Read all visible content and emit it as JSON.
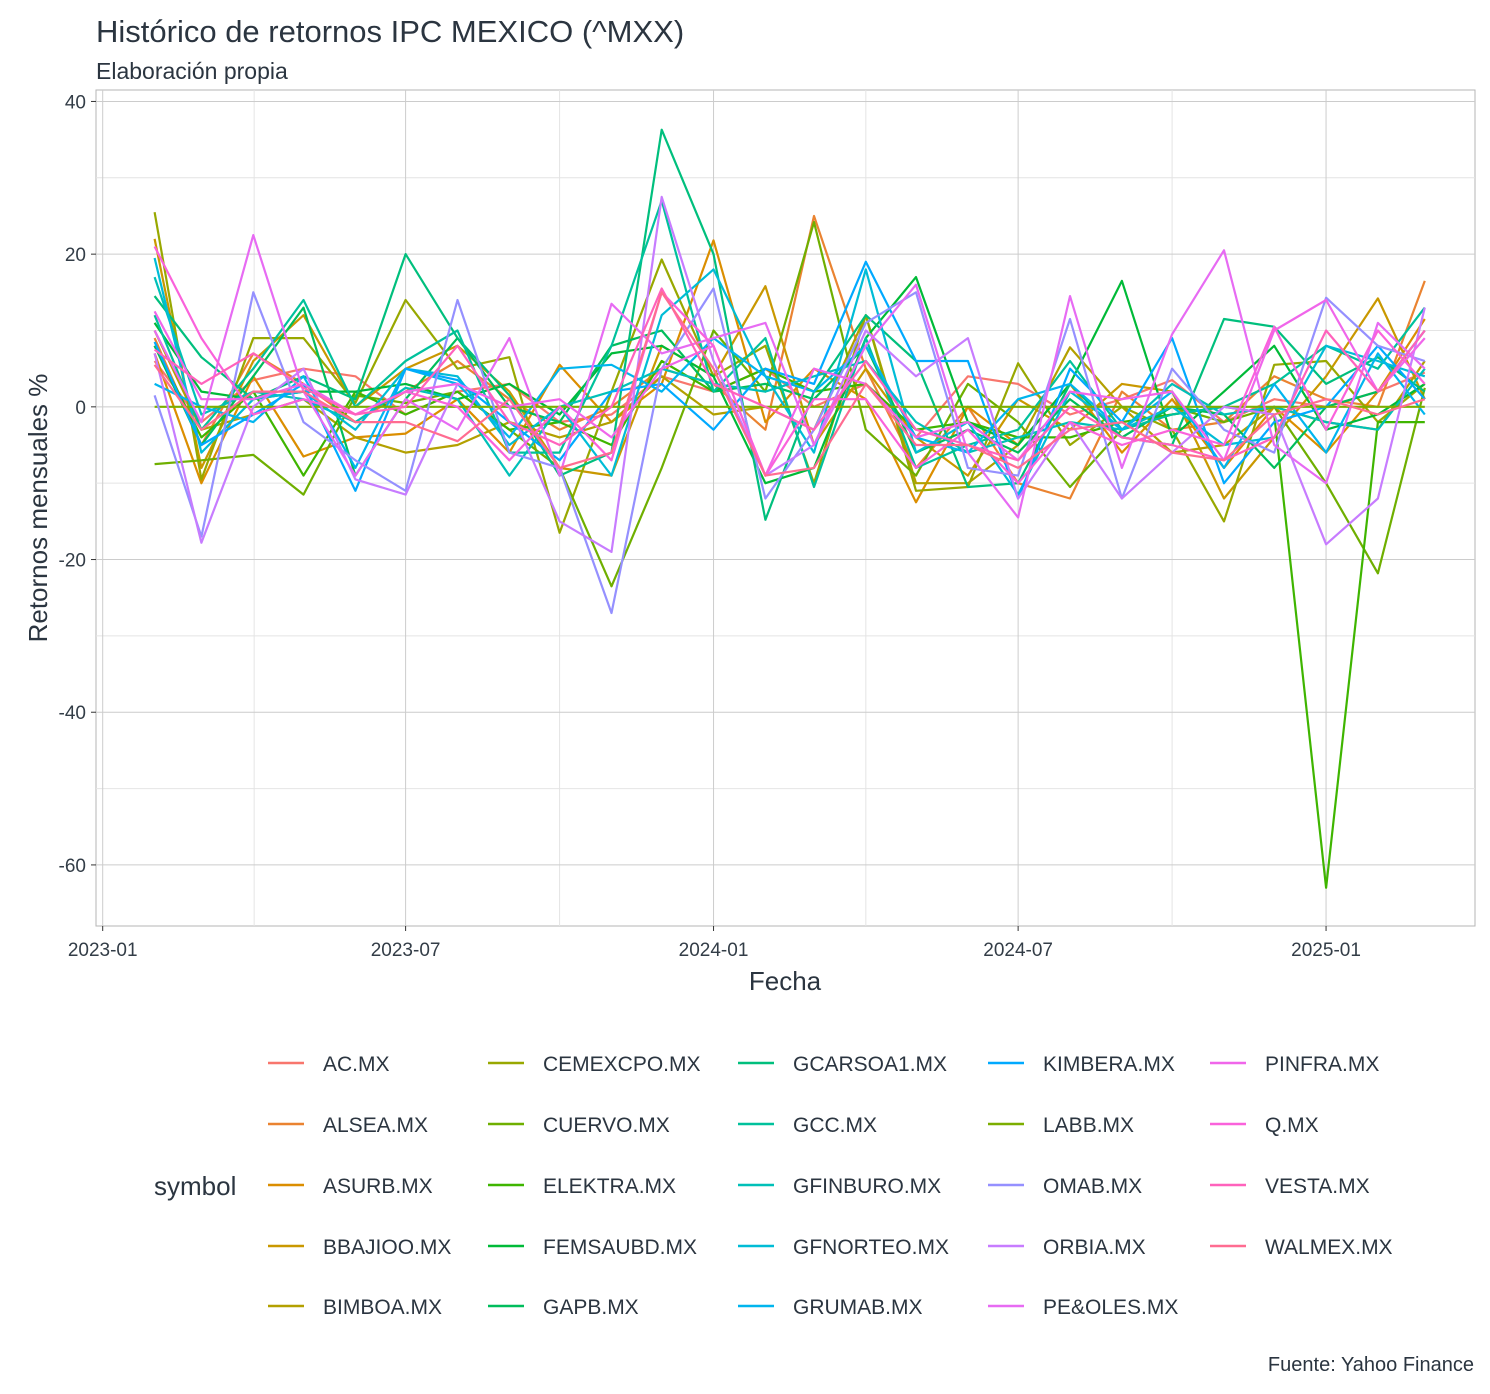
{
  "chart_data": {
    "type": "line",
    "title": "Histórico de retornos IPC MEXICO (^MXX)",
    "subtitle": "Elaboración propia",
    "caption": "Fuente: Yahoo Finance",
    "xlabel": "Fecha",
    "ylabel": "Retornos mensuales %",
    "legend_title": "symbol",
    "legend_position": "bottom",
    "grid": true,
    "x_ticks": [
      "2023-01",
      "2023-07",
      "2024-01",
      "2024-07",
      "2025-01"
    ],
    "y_ticks": [
      40,
      20,
      0,
      -20,
      -40,
      -60
    ],
    "ylim": [
      -68,
      41.5
    ],
    "xlim": [
      "2022-12-28",
      "2025-03-31"
    ],
    "x": [
      "2023-02-01",
      "2023-03-01",
      "2023-04-01",
      "2023-05-01",
      "2023-06-01",
      "2023-07-01",
      "2023-08-01",
      "2023-09-01",
      "2023-10-01",
      "2023-11-01",
      "2023-12-01",
      "2024-01-01",
      "2024-02-01",
      "2024-03-01",
      "2024-04-01",
      "2024-05-01",
      "2024-06-01",
      "2024-07-01",
      "2024-08-01",
      "2024-09-01",
      "2024-10-01",
      "2024-11-01",
      "2024-12-01",
      "2025-01-01",
      "2025-02-01",
      "2025-03-01"
    ],
    "series": [
      {
        "name": "AC.MX",
        "color": "#F8766D",
        "values": [
          6.0,
          -2.0,
          3.5,
          5.0,
          4.0,
          -1.0,
          2.0,
          3.0,
          -2.0,
          -1.0,
          4.0,
          2.0,
          5.0,
          0.0,
          3.0,
          -4.0,
          4.0,
          3.0,
          -1.0,
          1.0,
          3.5,
          -2.0,
          1.0,
          0.0,
          2.0,
          4.5
        ]
      },
      {
        "name": "ALSEA.MX",
        "color": "#EA8331",
        "values": [
          9.0,
          -5.0,
          7.0,
          3.0,
          -2.0,
          2.0,
          6.0,
          1.0,
          -3.0,
          0.0,
          5.0,
          3.0,
          -3.0,
          25.0,
          5.0,
          -8.0,
          0.0,
          -10.0,
          -12.0,
          2.0,
          -3.0,
          -2.0,
          4.0,
          1.0,
          0.0,
          16.5
        ]
      },
      {
        "name": "ASURB.MX",
        "color": "#DB8E00",
        "values": [
          7.0,
          -10.0,
          4.0,
          -6.5,
          -4.0,
          -3.5,
          1.0,
          -6.0,
          5.5,
          -2.0,
          3.0,
          21.8,
          -2.0,
          5.0,
          1.0,
          -12.5,
          0.0,
          -5.0,
          3.0,
          -6.0,
          1.0,
          -8.0,
          0.0,
          -6.0,
          2.0,
          11.5
        ]
      },
      {
        "name": "BBAJIOO.MX",
        "color": "#C99800",
        "values": [
          22.0,
          -8.0,
          6.0,
          12.0,
          0.0,
          5.0,
          8.0,
          2.0,
          -8.0,
          -9.0,
          8.0,
          4.0,
          15.8,
          -5.0,
          5.0,
          -4.0,
          -9.0,
          1.0,
          -3.0,
          3.0,
          2.0,
          -12.0,
          -4.0,
          4.0,
          14.2,
          1.0
        ]
      },
      {
        "name": "BIMBOA.MX",
        "color": "#B3A000",
        "values": [
          10.0,
          -3.0,
          -1.0,
          1.0,
          -4.0,
          -6.0,
          -5.0,
          -2.0,
          -4.0,
          -2.0,
          4.0,
          -1.0,
          0.0,
          -3.0,
          12.0,
          -10.0,
          -10.0,
          -5.0,
          7.8,
          0.0,
          -6.0,
          -5.0,
          0.0,
          -2.0,
          -3.0,
          6.0
        ]
      },
      {
        "name": "CEMEXCPO.MX",
        "color": "#98A800",
        "values": [
          25.5,
          -9.5,
          9.0,
          9.0,
          0.5,
          14.0,
          5.0,
          6.5,
          -16.5,
          2.0,
          19.3,
          4.0,
          8.0,
          -10.0,
          12.0,
          -11.0,
          -10.5,
          5.7,
          -5.0,
          0.0,
          -3.0,
          -15.0,
          5.5,
          6.0,
          -2.0,
          3.0
        ]
      },
      {
        "name": "CUERVO.MX",
        "color": "#6FAF00",
        "values": [
          -7.5,
          -7.0,
          -6.3,
          -11.5,
          1.5,
          0.5,
          2.0,
          -3.0,
          -8.0,
          -23.5,
          -8.0,
          10.0,
          2.0,
          24.2,
          -3.0,
          -9.0,
          3.0,
          -2.0,
          -10.5,
          -3.0,
          0.0,
          -2.0,
          0.0,
          -10.0,
          -21.8,
          2.5
        ]
      },
      {
        "name": "ELEKTRA.MX",
        "color": "#3FB500",
        "values": [
          8.0,
          -4.0,
          2.0,
          -9.0,
          2.0,
          -1.0,
          2.0,
          -3.0,
          -2.0,
          -5.0,
          6.0,
          2.0,
          5.0,
          2.0,
          3.0,
          -3.0,
          -2.0,
          -4.0,
          -4.0,
          -2.0,
          -1.0,
          0.0,
          -1.0,
          -63.0,
          -2.0,
          -2.0
        ]
      },
      {
        "name": "FEMSAUBD.MX",
        "color": "#00BA38",
        "values": [
          11.0,
          2.0,
          1.0,
          2.0,
          2.0,
          3.0,
          1.0,
          3.0,
          -1.0,
          7.0,
          8.0,
          4.0,
          -10.0,
          -8.0,
          9.0,
          17.0,
          -2.0,
          -5.0,
          3.0,
          16.5,
          -4.0,
          2.0,
          8.0,
          -3.0,
          -1.0,
          3.0
        ]
      },
      {
        "name": "GAPB.MX",
        "color": "#00BD5C",
        "values": [
          8.0,
          -5.0,
          4.0,
          13.0,
          -9.0,
          1.0,
          9.0,
          0.0,
          -2.0,
          8.0,
          10.0,
          2.0,
          3.0,
          1.0,
          8.0,
          -6.0,
          -3.0,
          -6.0,
          1.0,
          -4.0,
          0.0,
          -1.0,
          -8.0,
          0.0,
          2.0,
          10.0
        ]
      },
      {
        "name": "GCARSOA1.MX",
        "color": "#00BF7D",
        "values": [
          14.5,
          6.5,
          1.0,
          4.0,
          1.0,
          20.0,
          9.0,
          1.5,
          -9.0,
          -6.0,
          36.3,
          20.0,
          -14.8,
          2.0,
          12.0,
          6.0,
          -10.5,
          -10.0,
          3.0,
          -4.0,
          -5.0,
          11.5,
          10.5,
          3.0,
          6.5,
          2.0
        ]
      },
      {
        "name": "GCC.MX",
        "color": "#00C19C",
        "values": [
          12.0,
          -3.0,
          5.0,
          14.0,
          0.0,
          6.0,
          10.0,
          -6.0,
          -6.0,
          8.0,
          27.0,
          2.0,
          9.0,
          -10.5,
          9.0,
          -8.0,
          -5.0,
          -3.0,
          6.0,
          -3.0,
          -1.0,
          0.0,
          3.0,
          8.0,
          5.0,
          13.0
        ]
      },
      {
        "name": "GFINBURO.MX",
        "color": "#00C0B8",
        "values": [
          17.0,
          -1.0,
          2.0,
          1.0,
          -2.0,
          2.5,
          1.0,
          -9.0,
          0.0,
          2.0,
          5.0,
          3.0,
          2.0,
          4.0,
          6.0,
          -2.0,
          -6.0,
          -4.0,
          -2.0,
          -3.0,
          3.0,
          -1.0,
          0.0,
          -2.0,
          -3.0,
          5.0
        ]
      },
      {
        "name": "GFNORTEO.MX",
        "color": "#00BCD6",
        "values": [
          19.5,
          -6.0,
          1.0,
          2.0,
          -3.0,
          5.0,
          4.0,
          -5.0,
          0.0,
          -9.0,
          12.0,
          18.0,
          4.0,
          -6.0,
          18.0,
          -6.0,
          -2.0,
          -11.5,
          2.0,
          -3.0,
          0.0,
          -5.0,
          -4.0,
          8.0,
          6.0,
          4.0
        ]
      },
      {
        "name": "GRUMAB.MX",
        "color": "#00B5EE",
        "values": [
          3.0,
          0.0,
          -2.0,
          4.0,
          -8.0,
          5.0,
          3.0,
          -4.0,
          5.0,
          5.5,
          2.0,
          9.0,
          4.0,
          2.0,
          8.0,
          -4.0,
          -6.0,
          1.0,
          3.0,
          -3.0,
          2.0,
          -8.0,
          3.0,
          -6.0,
          7.0,
          -1.0
        ]
      },
      {
        "name": "KIMBERA.MX",
        "color": "#00A9FF",
        "values": [
          8.5,
          -5.0,
          -1.0,
          3.0,
          -11.0,
          5.0,
          3.5,
          -2.0,
          -7.0,
          2.0,
          3.0,
          -3.0,
          5.0,
          3.0,
          19.0,
          6.0,
          6.0,
          -12.0,
          5.0,
          -2.0,
          9.0,
          -10.0,
          -2.0,
          0.0,
          8.0,
          1.0
        ]
      },
      {
        "name": "LABB.MX",
        "color": "#7CAE00",
        "values": [
          0.0,
          0.0,
          0.0,
          0.0,
          0.0,
          0.0,
          0.0,
          0.0,
          0.0,
          0.0,
          0.0,
          0.0,
          0.0,
          0.0,
          0.0,
          0.0,
          0.0,
          0.0,
          0.0,
          0.0,
          0.0,
          0.0,
          0.0,
          0.0,
          0.0,
          0.0
        ]
      },
      {
        "name": "OMAB.MX",
        "color": "#9590FF",
        "values": [
          1.5,
          -17.0,
          15.0,
          -2.0,
          -7.0,
          -11.0,
          14.0,
          -6.0,
          -8.0,
          -27.0,
          5.0,
          15.5,
          -12.0,
          -3.0,
          11.0,
          15.0,
          -8.0,
          -9.0,
          11.5,
          -12.0,
          5.0,
          -3.0,
          -6.0,
          14.3,
          8.0,
          6.0
        ]
      },
      {
        "name": "ORBIA.MX",
        "color": "#C77CFF",
        "values": [
          7.0,
          -17.8,
          0.0,
          5.0,
          -9.5,
          -11.5,
          3.0,
          0.0,
          -15.0,
          -19.0,
          27.5,
          6.0,
          -9.0,
          -5.0,
          10.0,
          4.0,
          9.0,
          -12.0,
          -2.0,
          -12.0,
          -6.0,
          0.0,
          -1.0,
          -18.0,
          -12.0,
          13.0
        ]
      },
      {
        "name": "PE&OLES.MX",
        "color": "#E76BF3",
        "values": [
          10.0,
          -2.0,
          22.5,
          2.0,
          -9.0,
          1.0,
          -3.0,
          9.0,
          -9.0,
          13.5,
          7.0,
          9.0,
          11.0,
          -5.0,
          8.0,
          16.0,
          -6.0,
          -14.5,
          14.5,
          -8.0,
          9.5,
          20.5,
          -5.0,
          -10.0,
          11.0,
          5.0
        ]
      },
      {
        "name": "PINFRA.MX",
        "color": "#F066EA",
        "values": [
          12.5,
          1.0,
          1.0,
          3.0,
          -1.0,
          2.0,
          3.0,
          0.0,
          1.0,
          -4.0,
          5.0,
          8.0,
          -9.0,
          5.0,
          3.0,
          -4.0,
          -2.0,
          -7.0,
          2.0,
          1.0,
          2.0,
          -7.0,
          10.0,
          14.0,
          2.0,
          9.0
        ]
      },
      {
        "name": "Q.MX",
        "color": "#FA62DB",
        "values": [
          21.0,
          9.0,
          -1.0,
          1.0,
          -1.0,
          2.0,
          0.0,
          -7.0,
          0.0,
          -7.0,
          15.0,
          8.0,
          -9.0,
          1.0,
          1.0,
          -8.0,
          -3.0,
          -10.0,
          -2.0,
          -5.0,
          -3.0,
          -5.0,
          10.5,
          -3.0,
          10.0,
          3.0
        ]
      },
      {
        "name": "VESTA.MX",
        "color": "#FF62BC",
        "values": [
          7.5,
          3.0,
          7.0,
          2.5,
          -1.0,
          0.0,
          8.0,
          -2.0,
          -5.0,
          0.0,
          15.5,
          3.0,
          0.0,
          -3.0,
          6.0,
          -3.0,
          -5.0,
          -7.0,
          0.0,
          -4.0,
          -5.0,
          -7.0,
          -4.0,
          10.0,
          2.0,
          10.0
        ]
      },
      {
        "name": "WALMEX.MX",
        "color": "#FF6C91",
        "values": [
          5.5,
          -3.0,
          2.0,
          2.0,
          -2.0,
          -2.0,
          -4.5,
          1.0,
          -8.0,
          -6.0,
          15.0,
          5.0,
          -9.0,
          -8.0,
          3.0,
          -5.0,
          -5.0,
          -8.0,
          -3.0,
          -2.0,
          -6.0,
          -7.0,
          -1.0,
          1.0,
          -1.0,
          1.0
        ]
      }
    ]
  }
}
